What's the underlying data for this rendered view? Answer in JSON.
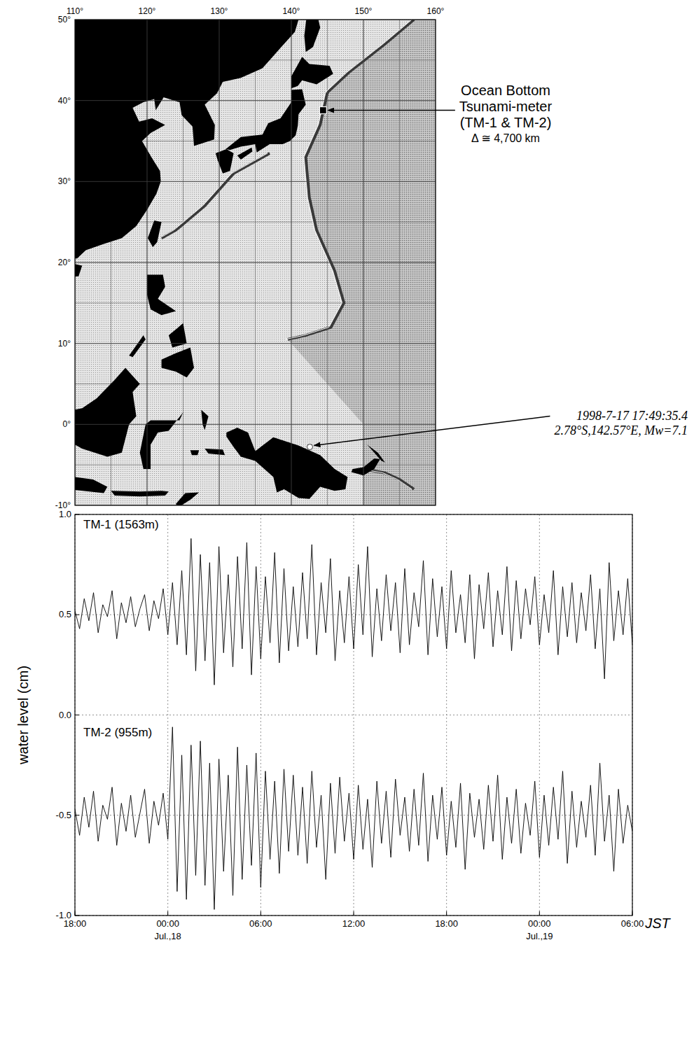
{
  "chart_data": {
    "type": "line",
    "x_label": "JST",
    "y_label": "water level (cm)",
    "x": [
      0,
      0.3,
      0.6,
      0.9,
      1.2,
      1.5,
      1.8,
      2.1,
      2.4,
      2.7,
      3,
      3.3,
      3.6,
      3.9,
      4.2,
      4.5,
      4.8,
      5.1,
      5.4,
      5.7,
      6,
      6.3,
      6.6,
      6.9,
      7.2,
      7.5,
      7.8,
      8.1,
      8.4,
      8.7,
      9,
      9.3,
      9.6,
      9.9,
      10.2,
      10.5,
      10.8,
      11.1,
      11.4,
      11.7,
      12,
      12.3,
      12.6,
      12.9,
      13.2,
      13.5,
      13.8,
      14.1,
      14.4,
      14.7,
      15,
      15.3,
      15.6,
      15.9,
      16.2,
      16.5,
      16.8,
      17.1,
      17.4,
      17.7,
      18,
      18.3,
      18.6,
      18.9,
      19.2,
      19.5,
      19.8,
      20.1,
      20.4,
      20.7,
      21,
      21.3,
      21.6,
      21.9,
      22.2,
      22.5,
      22.8,
      23.1,
      23.4,
      23.7,
      24,
      24.3,
      24.6,
      24.9,
      25.2,
      25.5,
      25.8,
      26.1,
      26.4,
      26.7,
      27,
      27.3,
      27.6,
      27.9,
      28.2,
      28.5,
      28.8,
      29.1,
      29.4,
      29.7,
      30,
      30.3,
      30.6,
      30.9,
      31.2,
      31.5,
      31.8,
      32.1,
      32.4,
      32.7,
      33,
      33.3,
      33.6,
      33.9,
      34.2,
      34.5,
      34.8,
      35.1,
      35.4,
      35.7,
      36
    ],
    "xlim": [
      0,
      36
    ],
    "xticks": [
      {
        "value": 0,
        "label": "18:00"
      },
      {
        "value": 6,
        "label": "00:00"
      },
      {
        "value": 12,
        "label": "06:00"
      },
      {
        "value": 18,
        "label": "12:00"
      },
      {
        "value": 24,
        "label": "18:00"
      },
      {
        "value": 30,
        "label": "00:00"
      },
      {
        "value": 36,
        "label": "06:00"
      }
    ],
    "ylim": [
      -1,
      1
    ],
    "yticks": [
      {
        "value": -1,
        "label": "-1.0"
      },
      {
        "value": -0.5,
        "label": "-0.5"
      },
      {
        "value": 0,
        "label": "0.0"
      },
      {
        "value": 0.5,
        "label": "0.5"
      },
      {
        "value": 1,
        "label": "1.0"
      }
    ],
    "grid": true,
    "annotations": [
      {
        "x": 6,
        "text": "Jul.,18"
      },
      {
        "x": 30,
        "text": "Jul.,19"
      }
    ],
    "series": [
      {
        "name": "TM-1 (1563m)",
        "color": "#000000",
        "values": [
          0.52,
          0.43,
          0.58,
          0.47,
          0.61,
          0.41,
          0.55,
          0.49,
          0.62,
          0.38,
          0.56,
          0.46,
          0.59,
          0.44,
          0.53,
          0.6,
          0.42,
          0.57,
          0.48,
          0.63,
          0.4,
          0.66,
          0.35,
          0.72,
          0.3,
          0.88,
          0.22,
          0.8,
          0.27,
          0.76,
          0.15,
          0.84,
          0.31,
          0.7,
          0.24,
          0.79,
          0.33,
          0.86,
          0.2,
          0.74,
          0.28,
          0.69,
          0.36,
          0.81,
          0.26,
          0.73,
          0.32,
          0.64,
          0.34,
          0.71,
          0.38,
          0.85,
          0.3,
          0.66,
          0.41,
          0.78,
          0.27,
          0.62,
          0.36,
          0.69,
          0.33,
          0.75,
          0.4,
          0.84,
          0.29,
          0.63,
          0.37,
          0.7,
          0.42,
          0.66,
          0.31,
          0.73,
          0.35,
          0.61,
          0.44,
          0.77,
          0.3,
          0.68,
          0.39,
          0.64,
          0.33,
          0.72,
          0.41,
          0.6,
          0.36,
          0.7,
          0.28,
          0.65,
          0.43,
          0.71,
          0.34,
          0.62,
          0.4,
          0.74,
          0.32,
          0.67,
          0.38,
          0.63,
          0.45,
          0.69,
          0.35,
          0.6,
          0.41,
          0.72,
          0.3,
          0.64,
          0.39,
          0.66,
          0.36,
          0.61,
          0.42,
          0.7,
          0.33,
          0.63,
          0.18,
          0.76,
          0.37,
          0.62,
          0.4,
          0.68,
          0.35
        ]
      },
      {
        "name": "TM-2 (955m)",
        "color": "#000000",
        "values": [
          -0.47,
          -0.6,
          -0.41,
          -0.56,
          -0.38,
          -0.63,
          -0.45,
          -0.52,
          -0.36,
          -0.65,
          -0.44,
          -0.58,
          -0.4,
          -0.61,
          -0.49,
          -0.37,
          -0.64,
          -0.43,
          -0.55,
          -0.39,
          -0.62,
          -0.06,
          -0.88,
          -0.2,
          -0.92,
          -0.15,
          -0.8,
          -0.13,
          -0.85,
          -0.24,
          -0.97,
          -0.22,
          -0.78,
          -0.3,
          -0.9,
          -0.16,
          -0.82,
          -0.25,
          -0.75,
          -0.19,
          -0.86,
          -0.28,
          -0.72,
          -0.33,
          -0.79,
          -0.27,
          -0.68,
          -0.3,
          -0.7,
          -0.36,
          -0.74,
          -0.28,
          -0.66,
          -0.4,
          -0.82,
          -0.34,
          -0.69,
          -0.31,
          -0.63,
          -0.39,
          -0.72,
          -0.35,
          -0.67,
          -0.42,
          -0.76,
          -0.33,
          -0.64,
          -0.38,
          -0.71,
          -0.32,
          -0.6,
          -0.41,
          -0.68,
          -0.37,
          -0.65,
          -0.29,
          -0.73,
          -0.4,
          -0.62,
          -0.36,
          -0.7,
          -0.43,
          -0.66,
          -0.34,
          -0.77,
          -0.39,
          -0.61,
          -0.42,
          -0.67,
          -0.35,
          -0.63,
          -0.3,
          -0.72,
          -0.41,
          -0.64,
          -0.37,
          -0.69,
          -0.44,
          -0.6,
          -0.33,
          -0.71,
          -0.4,
          -0.65,
          -0.36,
          -0.62,
          -0.28,
          -0.74,
          -0.38,
          -0.66,
          -0.43,
          -0.61,
          -0.35,
          -0.7,
          -0.24,
          -0.63,
          -0.4,
          -0.78,
          -0.37,
          -0.64,
          -0.45,
          -0.58
        ]
      }
    ]
  },
  "map": {
    "lonlim": [
      110,
      160
    ],
    "latlim": [
      -10,
      50
    ],
    "lon_ticks": [
      {
        "value": 110,
        "label": "110°"
      },
      {
        "value": 120,
        "label": "120°"
      },
      {
        "value": 130,
        "label": "130°"
      },
      {
        "value": 140,
        "label": "140°"
      },
      {
        "value": 150,
        "label": "150°"
      },
      {
        "value": 160,
        "label": "160°"
      }
    ],
    "lat_ticks": [
      {
        "value": 50,
        "label": "50°"
      },
      {
        "value": 40,
        "label": "40°"
      },
      {
        "value": 30,
        "label": "30°"
      },
      {
        "value": 20,
        "label": "20°"
      },
      {
        "value": 10,
        "label": "10°"
      },
      {
        "value": 0,
        "label": "0°"
      },
      {
        "value": -10,
        "label": "-10°"
      }
    ],
    "station": {
      "lon": 144.4,
      "lat": 38.8,
      "label": [
        "Ocean Bottom",
        "Tsunami-meter",
        "(TM-1 & TM-2)"
      ],
      "distance": "Δ ≅ 4,700 km"
    },
    "epicenter": {
      "lon": 142.57,
      "lat": -2.78,
      "label": [
        "1998-7-17 17:49:35.4",
        "2.78°S,142.57°E,  Mw=7.1"
      ]
    }
  }
}
